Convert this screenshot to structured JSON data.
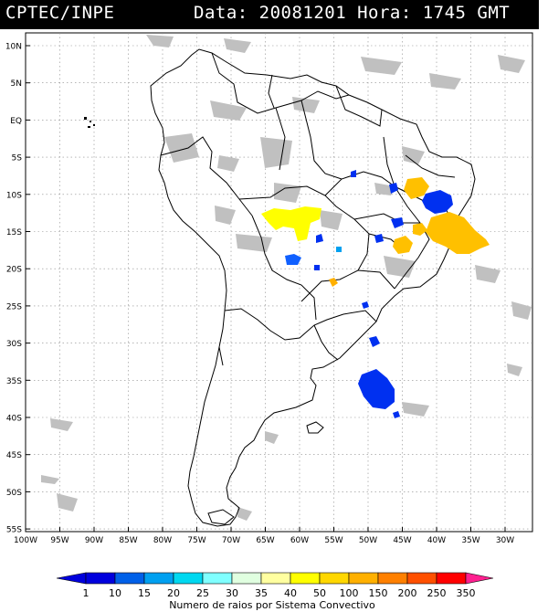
{
  "header": {
    "institution": "CPTEC/INPE",
    "datetime": "Data: 20081201 Hora: 1745 GMT"
  },
  "map": {
    "projection": "lat-lon",
    "lat_labels": [
      "10N",
      "5N",
      "EQ",
      "5S",
      "10S",
      "15S",
      "20S",
      "25S",
      "30S",
      "35S",
      "40S",
      "45S",
      "50S",
      "55S"
    ],
    "lon_labels": [
      "100W",
      "95W",
      "90W",
      "85W",
      "80W",
      "75W",
      "70W",
      "65W",
      "60W",
      "55W",
      "50W",
      "45W",
      "40W",
      "35W",
      "30W"
    ],
    "colors": {
      "coastline": "#000000",
      "clouds": "#c0c0c0",
      "grid": "#808080"
    }
  },
  "legend": {
    "title": "Numero de raios por Sistema Convectivo",
    "ticks": [
      "1",
      "10",
      "15",
      "20",
      "25",
      "30",
      "35",
      "40",
      "50",
      "100",
      "150",
      "200",
      "250",
      "350"
    ],
    "colors": [
      "#0000dd",
      "#0060e8",
      "#00a0f0",
      "#00d8f0",
      "#80ffff",
      "#e0ffe0",
      "#ffffa0",
      "#ffff00",
      "#ffd700",
      "#ffb000",
      "#ff8000",
      "#ff5000",
      "#ff0000",
      "#ff2090"
    ]
  },
  "systems": [
    {
      "color": "#ffff00",
      "lightning_class": "40"
    },
    {
      "color": "#ffcc00",
      "lightning_class": "50"
    },
    {
      "color": "#ffb000",
      "lightning_class": "100"
    },
    {
      "color": "#0030f0",
      "lightning_class": "10"
    },
    {
      "color": "#1060ff",
      "lightning_class": "15"
    },
    {
      "color": "#00a0f0",
      "lightning_class": "20"
    }
  ]
}
